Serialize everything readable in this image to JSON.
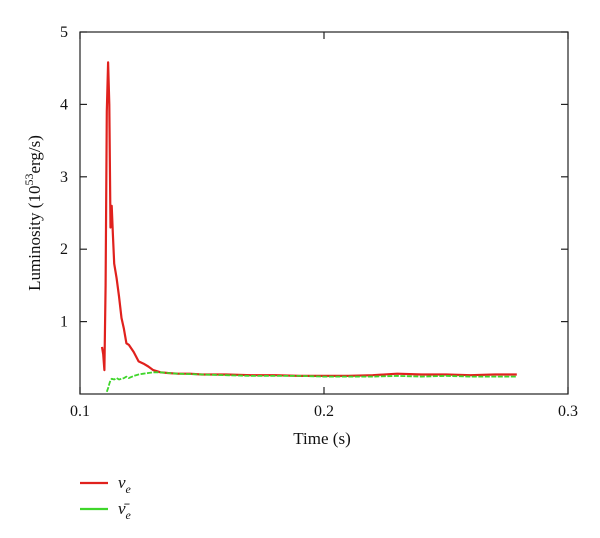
{
  "chart_data": {
    "type": "line",
    "xlabel": "Time (s)",
    "ylabel": "Luminosity (10⁵³erg/s)",
    "ylabel_parts": {
      "pre": "Luminosity (10",
      "sup": "53",
      "post": "erg/s)"
    },
    "xlim": [
      0.1,
      0.3
    ],
    "ylim": [
      0,
      5
    ],
    "xticks": [
      0.1,
      0.2,
      0.3
    ],
    "xtick_labels": [
      "0.1",
      "0.2",
      "0.3"
    ],
    "yticks": [
      1,
      2,
      3,
      4,
      5
    ],
    "ytick_labels": [
      "1",
      "2",
      "3",
      "4",
      "5"
    ],
    "grid": false,
    "legend_position": "bottom-left, below plot",
    "series": [
      {
        "name": "νe",
        "legend_symbol": "ν",
        "legend_sub": "e",
        "bar": false,
        "color": "#e0211d",
        "x": [
          0.109,
          0.1095,
          0.11,
          0.1105,
          0.111,
          0.1115,
          0.112,
          0.1125,
          0.113,
          0.1135,
          0.114,
          0.1145,
          0.115,
          0.116,
          0.117,
          0.118,
          0.119,
          0.12,
          0.122,
          0.124,
          0.126,
          0.128,
          0.13,
          0.133,
          0.136,
          0.14,
          0.145,
          0.15,
          0.16,
          0.17,
          0.18,
          0.19,
          0.2,
          0.21,
          0.22,
          0.23,
          0.24,
          0.25,
          0.26,
          0.27,
          0.279
        ],
        "y": [
          0.65,
          0.55,
          0.33,
          1.5,
          3.9,
          4.58,
          4.0,
          2.3,
          2.6,
          2.2,
          1.8,
          1.7,
          1.6,
          1.35,
          1.05,
          0.9,
          0.7,
          0.68,
          0.58,
          0.45,
          0.42,
          0.38,
          0.33,
          0.3,
          0.29,
          0.28,
          0.28,
          0.27,
          0.27,
          0.26,
          0.26,
          0.25,
          0.25,
          0.25,
          0.26,
          0.28,
          0.27,
          0.27,
          0.26,
          0.27,
          0.27
        ]
      },
      {
        "name": "ν̄e",
        "legend_symbol": "ν̄",
        "legend_sub": "e",
        "bar": true,
        "color": "#3fd62b",
        "x": [
          0.111,
          0.1115,
          0.112,
          0.1125,
          0.113,
          0.114,
          0.115,
          0.116,
          0.117,
          0.118,
          0.119,
          0.12,
          0.122,
          0.124,
          0.126,
          0.128,
          0.13,
          0.133,
          0.136,
          0.14,
          0.15,
          0.16,
          0.17,
          0.18,
          0.19,
          0.2,
          0.21,
          0.22,
          0.23,
          0.24,
          0.25,
          0.26,
          0.27,
          0.279
        ],
        "y": [
          0.03,
          0.08,
          0.14,
          0.19,
          0.21,
          0.2,
          0.22,
          0.2,
          0.21,
          0.22,
          0.24,
          0.22,
          0.25,
          0.27,
          0.28,
          0.29,
          0.3,
          0.3,
          0.29,
          0.28,
          0.27,
          0.26,
          0.25,
          0.25,
          0.25,
          0.24,
          0.24,
          0.24,
          0.25,
          0.24,
          0.25,
          0.24,
          0.24,
          0.24
        ]
      }
    ]
  }
}
